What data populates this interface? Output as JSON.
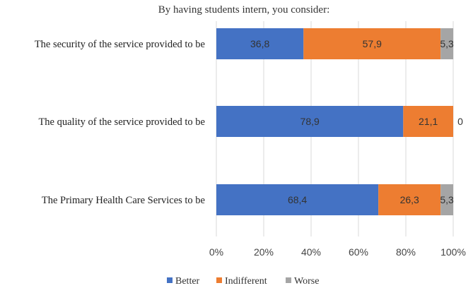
{
  "chart_data": {
    "type": "bar",
    "orientation": "horizontal",
    "stacked": true,
    "title": "By having students intern, you consider:",
    "categories": [
      "The security of the service provided to be",
      "The quality of the service provided to be",
      "The Primary Health Care Services to be"
    ],
    "series": [
      {
        "name": "Better",
        "values": [
          36.8,
          78.9,
          68.4
        ],
        "labels": [
          "36,8",
          "78,9",
          "68,4"
        ],
        "color": "#4472C4"
      },
      {
        "name": "Indifferent",
        "values": [
          57.9,
          21.1,
          26.3
        ],
        "labels": [
          "57,9",
          "21,1",
          "26,3"
        ],
        "color": "#ED7D31"
      },
      {
        "name": "Worse",
        "values": [
          5.3,
          0,
          5.3
        ],
        "labels": [
          "5,3",
          "0",
          "5,3"
        ],
        "color": "#A5A5A5"
      }
    ],
    "xlim": [
      0,
      100
    ],
    "xticks": [
      "0%",
      "20%",
      "40%",
      "60%",
      "80%",
      "100%"
    ],
    "grid": true,
    "legend_position": "bottom"
  }
}
